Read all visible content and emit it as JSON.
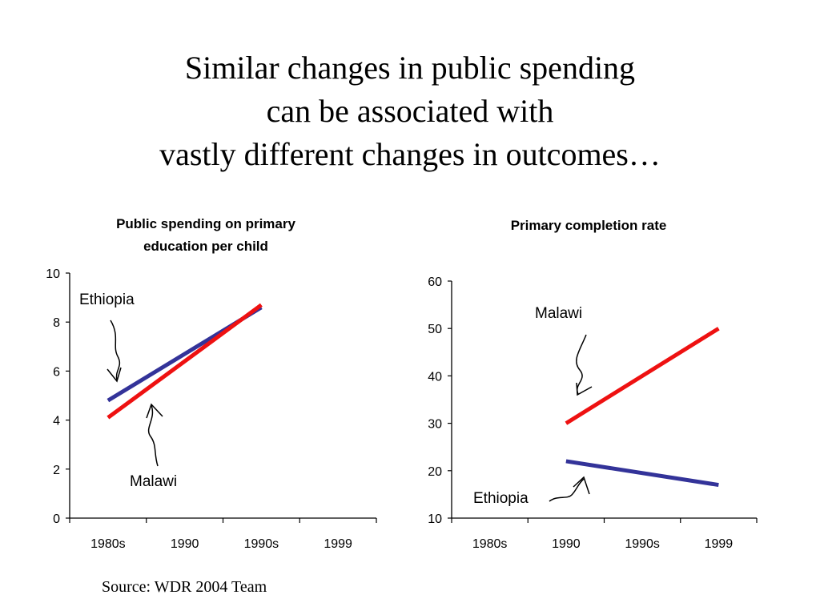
{
  "slide": {
    "title_lines": [
      "Similar changes in public spending",
      "can be associated with",
      "vastly different changes in outcomes…"
    ],
    "source": "Source: WDR 2004 Team"
  },
  "chart_data": [
    {
      "type": "line",
      "title_lines": [
        "Public spending on primary",
        "education per child"
      ],
      "categories": [
        "1980s",
        "1990",
        "1990s",
        "1999"
      ],
      "ylim": [
        0,
        10
      ],
      "yticks": [
        0,
        2,
        4,
        6,
        8,
        10
      ],
      "grid": false,
      "legend": "none",
      "series": [
        {
          "name": "Ethiopia",
          "color": "#333399",
          "x": [
            "1980s",
            "1990s"
          ],
          "values": [
            4.8,
            8.6
          ]
        },
        {
          "name": "Malawi",
          "color": "#ee1111",
          "x": [
            "1980s",
            "1990s"
          ],
          "values": [
            4.1,
            8.7
          ]
        }
      ],
      "annotations": [
        "Ethiopia",
        "Malawi"
      ]
    },
    {
      "type": "line",
      "title_lines": [
        "Primary completion rate"
      ],
      "categories": [
        "1980s",
        "1990",
        "1990s",
        "1999"
      ],
      "ylim": [
        10,
        60
      ],
      "yticks": [
        10,
        20,
        30,
        40,
        50,
        60
      ],
      "grid": false,
      "legend": "none",
      "series": [
        {
          "name": "Malawi",
          "color": "#ee1111",
          "x": [
            "1990",
            "1999"
          ],
          "values": [
            30,
            50
          ]
        },
        {
          "name": "Ethiopia",
          "color": "#333399",
          "x": [
            "1990",
            "1999"
          ],
          "values": [
            22,
            17
          ]
        }
      ],
      "annotations": [
        "Malawi",
        "Ethiopia"
      ]
    }
  ]
}
